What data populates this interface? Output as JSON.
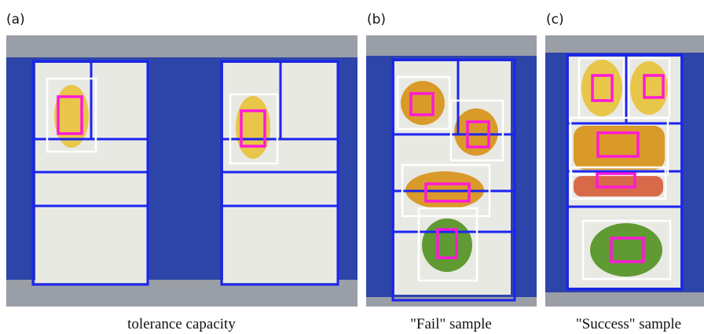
{
  "panels": [
    {
      "label": "(a)",
      "caption": "tolerance capacity"
    },
    {
      "label": "(b)",
      "caption": "\"Fail\" sample"
    },
    {
      "label": "(c)",
      "caption": "\"Success\" sample"
    }
  ]
}
